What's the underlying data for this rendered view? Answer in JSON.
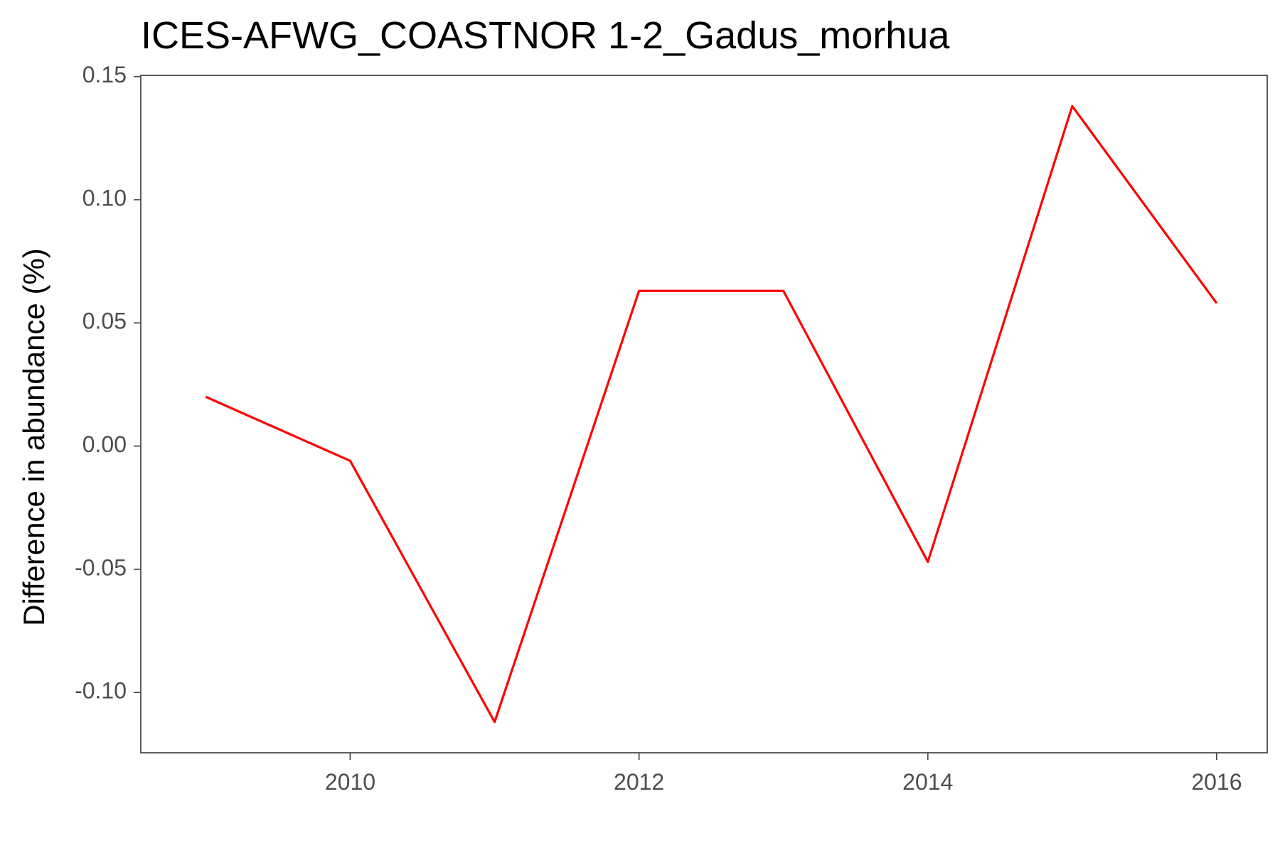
{
  "chart_data": {
    "type": "line",
    "title": "ICES-AFWG_COASTNOR 1-2_Gadus_morhua",
    "xlabel": "",
    "ylabel": "Difference in abundance (%)",
    "x": [
      2009,
      2010,
      2011,
      2012,
      2013,
      2014,
      2015,
      2016
    ],
    "series": [
      {
        "color": "#ff0000",
        "values": [
          0.02,
          -0.006,
          -0.112,
          0.063,
          0.063,
          -0.047,
          0.138,
          0.058
        ]
      }
    ],
    "xlim": [
      2008.55,
      2016.35
    ],
    "ylim": [
      -0.1245,
      0.1505
    ],
    "xticks": [
      2010,
      2012,
      2014,
      2016
    ],
    "xtick_labels": [
      "2010",
      "2012",
      "2014",
      "2016"
    ],
    "yticks": [
      -0.1,
      -0.05,
      0.0,
      0.05,
      0.1,
      0.15
    ],
    "ytick_labels": [
      "-0.10",
      "-0.05",
      "0.00",
      "0.05",
      "0.10",
      "0.15"
    ],
    "grid": false,
    "legend": "none",
    "axis_color": "#4d4d4d"
  }
}
